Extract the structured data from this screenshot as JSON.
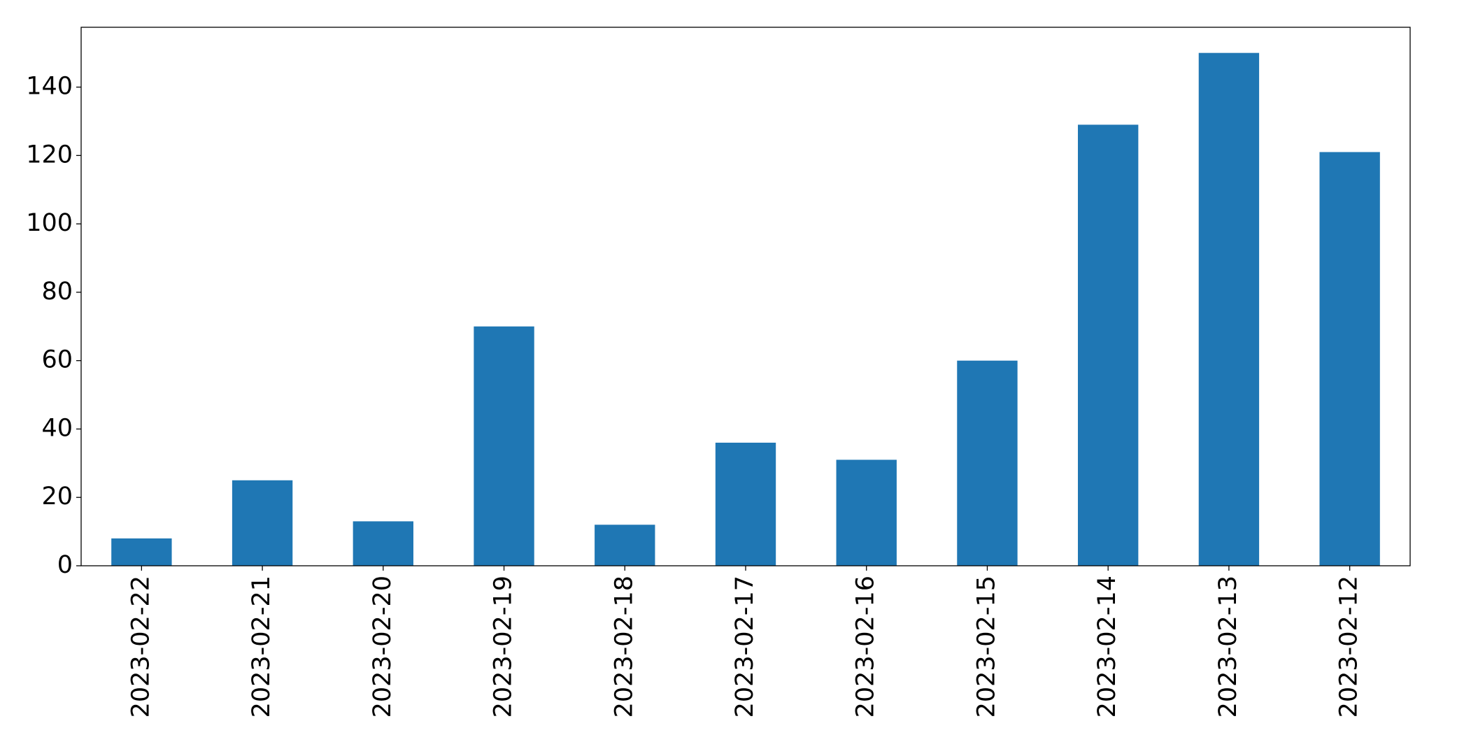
{
  "chart_data": {
    "type": "bar",
    "categories": [
      "2023-02-22",
      "2023-02-21",
      "2023-02-20",
      "2023-02-19",
      "2023-02-18",
      "2023-02-17",
      "2023-02-16",
      "2023-02-15",
      "2023-02-14",
      "2023-02-13",
      "2023-02-12"
    ],
    "values": [
      8,
      25,
      13,
      70,
      12,
      36,
      31,
      60,
      129,
      150,
      121
    ],
    "color": "#1f77b4",
    "ylim": [
      0,
      157.5
    ],
    "yticks": [
      0,
      20,
      40,
      60,
      80,
      100,
      120,
      140
    ],
    "grid": false
  }
}
